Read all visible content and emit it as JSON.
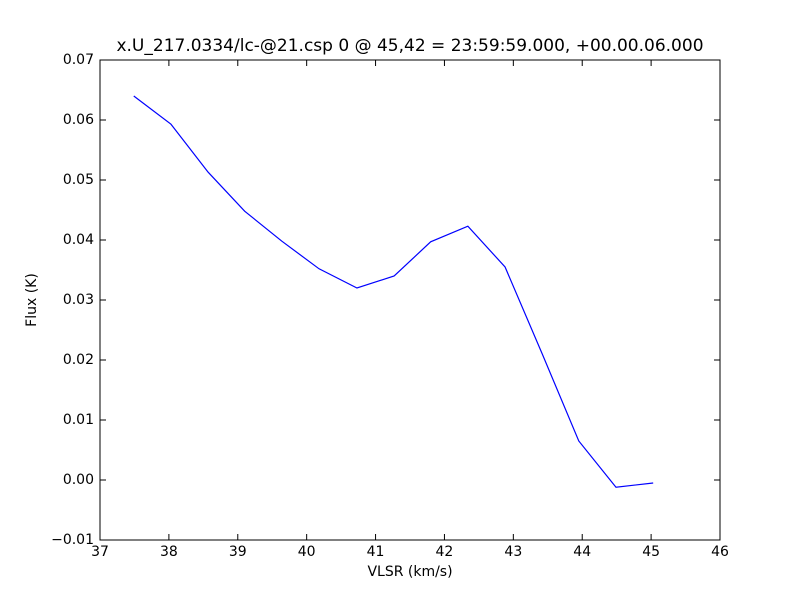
{
  "chart_data": {
    "type": "line",
    "title": "x.U_217.0334/lc-@21.csp 0 @ 45,42 = 23:59:59.000, +00.00.06.000",
    "x_label": "VLSR (km/s)",
    "y_label": "Flux (K)",
    "x": [
      37.49,
      38.03,
      38.57,
      39.1,
      39.64,
      40.18,
      40.73,
      41.27,
      41.8,
      42.34,
      42.88,
      43.42,
      43.95,
      44.49,
      45.03
    ],
    "series": [
      {
        "color": "#0000ff",
        "values": [
          0.064,
          0.0593,
          0.0513,
          0.0448,
          0.0398,
          0.0352,
          0.032,
          0.034,
          0.0397,
          0.0423,
          0.0355,
          0.021,
          0.0065,
          -0.0012,
          -0.0005
        ]
      }
    ],
    "xlim": [
      37,
      46
    ],
    "xticks": [
      37,
      38,
      39,
      40,
      41,
      42,
      43,
      44,
      45,
      46
    ],
    "ylim": [
      -0.01,
      0.07
    ],
    "yticks": [
      {
        "value": -0.01,
        "label": "−0.01"
      },
      {
        "value": 0,
        "label": "0.00"
      },
      0.01,
      0.02,
      0.03,
      0.04,
      0.05,
      0.06,
      0.07
    ],
    "grid": false
  }
}
